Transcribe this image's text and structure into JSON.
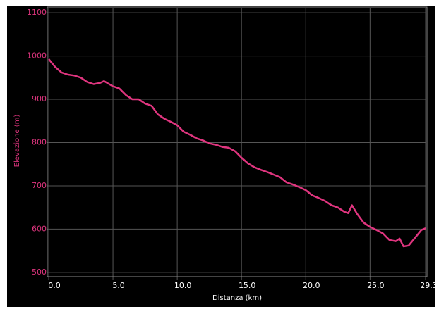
{
  "chart_data": {
    "type": "line",
    "xlabel": "Distanza (km)",
    "ylabel": "Elevazione (m)",
    "x": [
      0,
      0.5,
      1,
      1.5,
      2,
      2.5,
      3,
      3.5,
      4,
      4.3,
      5,
      5.5,
      6,
      6.5,
      7,
      7.5,
      8,
      8.5,
      9,
      9.5,
      10,
      10.5,
      11,
      11.5,
      12,
      12.5,
      13,
      13.5,
      14,
      14.5,
      15,
      15.5,
      16,
      16.5,
      17,
      17.5,
      18,
      18.5,
      19,
      19.5,
      20,
      20.5,
      21,
      21.5,
      22,
      22.5,
      23,
      23.3,
      23.6,
      24,
      24.5,
      25,
      25.5,
      26,
      26.5,
      27,
      27.3,
      27.6,
      28,
      28.5,
      29,
      29.32
    ],
    "values": [
      993,
      975,
      962,
      957,
      955,
      950,
      940,
      935,
      938,
      942,
      930,
      925,
      910,
      900,
      900,
      890,
      885,
      865,
      855,
      848,
      840,
      825,
      818,
      810,
      805,
      798,
      795,
      790,
      788,
      780,
      765,
      752,
      743,
      737,
      732,
      726,
      720,
      708,
      703,
      697,
      690,
      678,
      672,
      665,
      655,
      650,
      640,
      637,
      655,
      635,
      615,
      605,
      598,
      590,
      575,
      572,
      578,
      560,
      562,
      580,
      598,
      602
    ],
    "color": "#e0357f",
    "xlim": [
      0,
      29.32
    ],
    "ylim": [
      490,
      1110
    ],
    "xticks": [
      {
        "value": 0,
        "label": "0.0"
      },
      {
        "value": 5,
        "label": "5.0"
      },
      {
        "value": 10,
        "label": "10.0"
      },
      {
        "value": 15,
        "label": "15.0"
      },
      {
        "value": 20,
        "label": "20.0"
      },
      {
        "value": 25,
        "label": "25.0"
      },
      29.32
    ],
    "yticks": [
      500,
      600,
      700,
      800,
      900,
      1000,
      1100
    ],
    "grid": true
  }
}
